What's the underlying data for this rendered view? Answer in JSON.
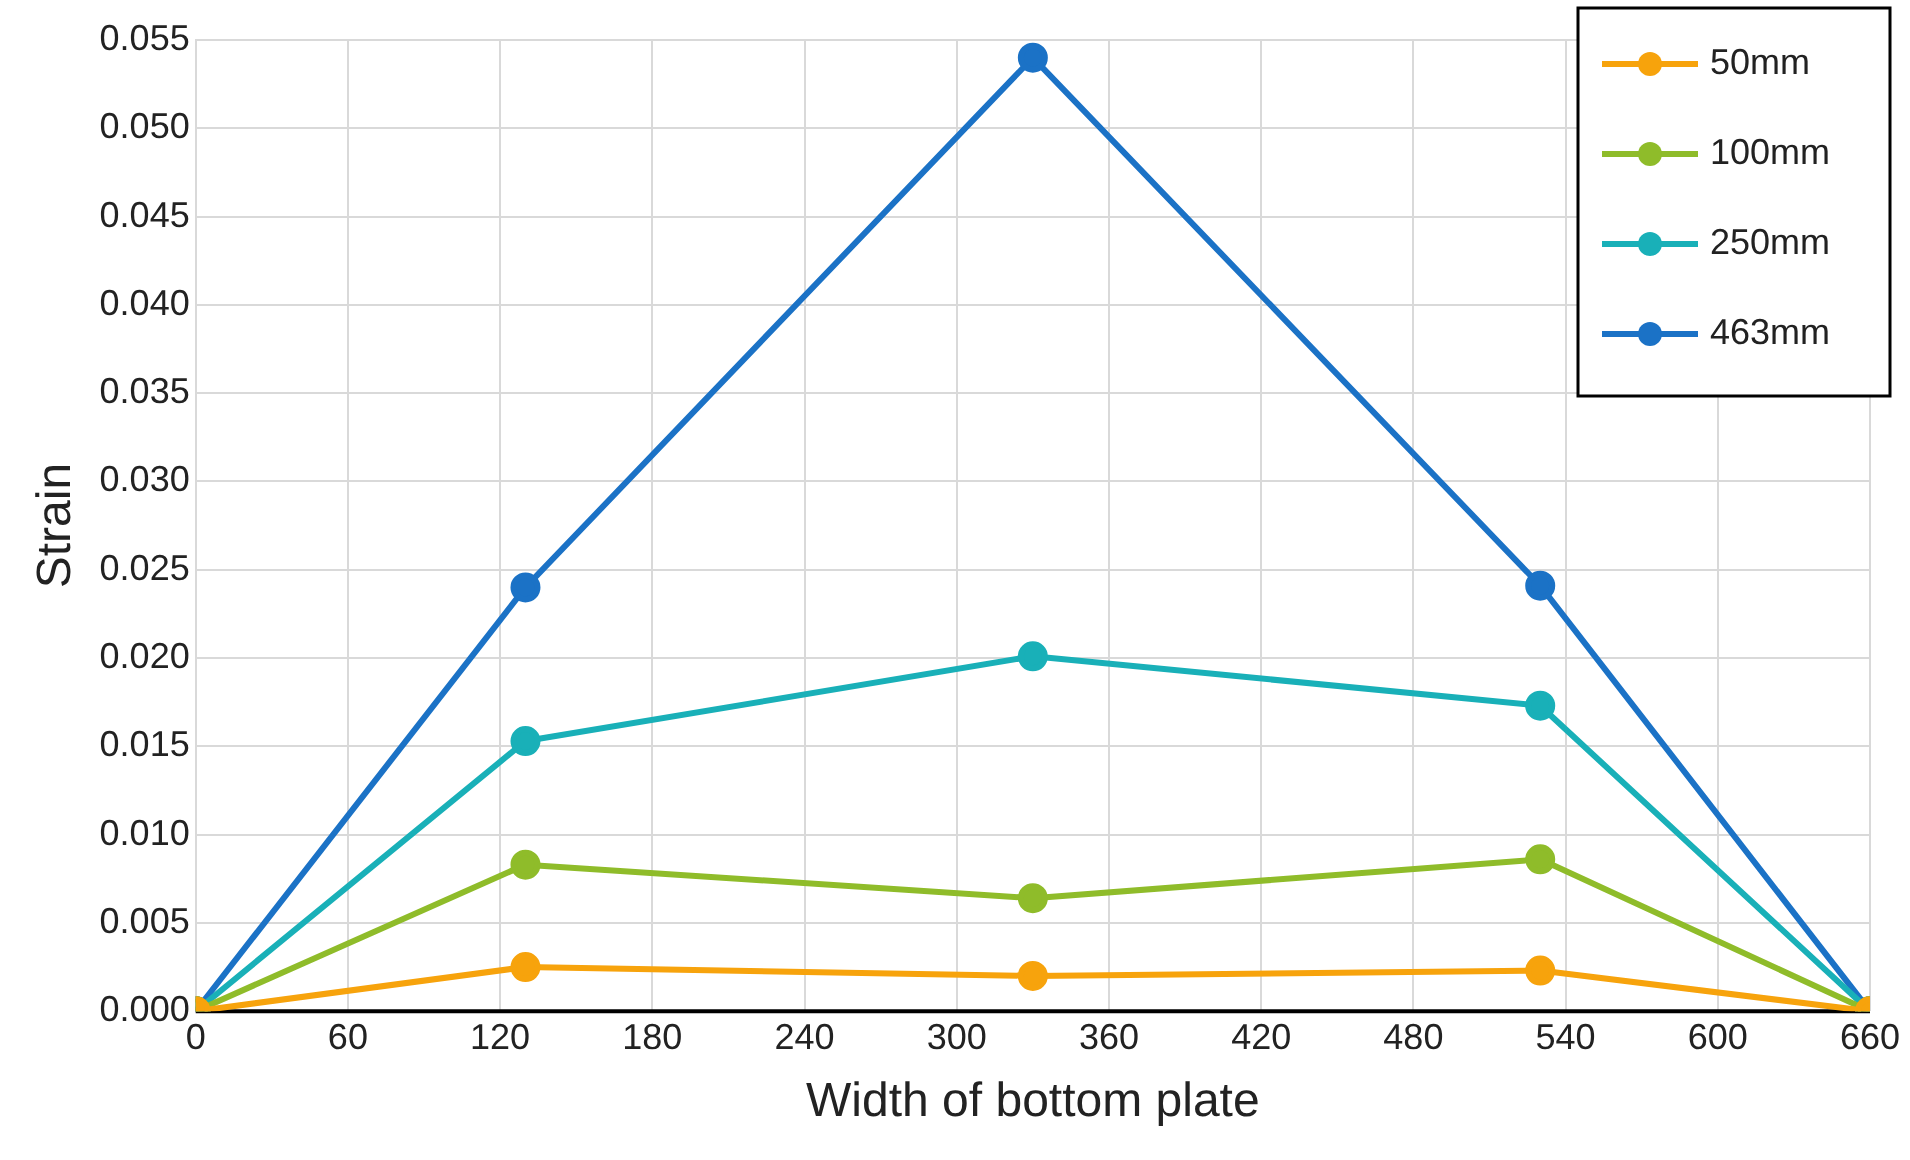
{
  "chart_data": {
    "type": "line",
    "xlabel": "Width of bottom plate",
    "ylabel": "Strain",
    "x": [
      0,
      130,
      330,
      530,
      660
    ],
    "series": [
      {
        "name": "50mm",
        "color": "#f7a30c",
        "values": [
          0,
          0.0025,
          0.002,
          0.0023,
          0
        ]
      },
      {
        "name": "100mm",
        "color": "#8fbc2a",
        "values": [
          0,
          0.0083,
          0.0064,
          0.0086,
          0
        ]
      },
      {
        "name": "250mm",
        "color": "#19b0b8",
        "values": [
          0,
          0.0153,
          0.0201,
          0.0173,
          0
        ]
      },
      {
        "name": "463mm",
        "color": "#1b72c6",
        "values": [
          0,
          0.024,
          0.054,
          0.0241,
          0
        ]
      }
    ],
    "xlim": [
      0,
      660
    ],
    "xticks": [
      0,
      60,
      120,
      180,
      240,
      300,
      360,
      420,
      480,
      540,
      600,
      660
    ],
    "ylim": [
      0,
      0.055
    ],
    "yticks": [
      {
        "value": 0,
        "label": "0.000"
      },
      {
        "value": 0.005,
        "label": "0.005"
      },
      {
        "value": 0.01,
        "label": "0.010"
      },
      {
        "value": 0.015,
        "label": "0.015"
      },
      {
        "value": 0.02,
        "label": "0.020"
      },
      {
        "value": 0.025,
        "label": "0.025"
      },
      {
        "value": 0.03,
        "label": "0.030"
      },
      {
        "value": 0.035,
        "label": "0.035"
      },
      {
        "value": 0.04,
        "label": "0.040"
      },
      {
        "value": 0.045,
        "label": "0.045"
      },
      {
        "value": 0.05,
        "label": "0.050"
      },
      {
        "value": 0.055,
        "label": "0.055"
      }
    ],
    "grid": true,
    "legend": "top right",
    "marker": "circle",
    "line_style": "solid"
  }
}
